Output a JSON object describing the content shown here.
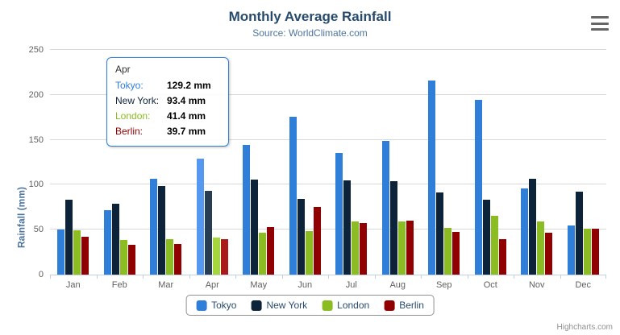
{
  "header": {
    "title": "Monthly Average Rainfall",
    "subtitle": "Source: WorldClimate.com"
  },
  "y_axis": {
    "title": "Rainfall (mm)"
  },
  "credits": {
    "label": "Highcharts.com"
  },
  "colors": {
    "title_text": "#274b6d",
    "subtitle_text": "#4d759e",
    "axis_label": "#606060",
    "axis_title": "#4d759e",
    "gridline": "#d8d8d8",
    "axis_line": "#c0d0e0",
    "legend_text": "#274b6d",
    "legend_border": "#909090",
    "tooltip_border": "#2f7ed8",
    "credits_text": "#909090"
  },
  "chart_data": {
    "type": "bar",
    "title": "Monthly Average Rainfall",
    "subtitle": "Source: WorldClimate.com",
    "xlabel": "",
    "ylabel": "Rainfall (mm)",
    "ylim": [
      0,
      250
    ],
    "yticks": [
      0,
      50,
      100,
      150,
      200,
      250
    ],
    "grid": true,
    "legend_position": "bottom",
    "highlighted_category": "Apr",
    "categories": [
      "Jan",
      "Feb",
      "Mar",
      "Apr",
      "May",
      "Jun",
      "Jul",
      "Aug",
      "Sep",
      "Oct",
      "Nov",
      "Dec"
    ],
    "series": [
      {
        "name": "Tokyo",
        "color": "#2f7ed8",
        "hover_color": "#5498f2",
        "values": [
          49.9,
          71.5,
          106.4,
          129.2,
          144.0,
          176.0,
          135.6,
          148.5,
          216.4,
          194.1,
          95.6,
          54.4
        ]
      },
      {
        "name": "New York",
        "color": "#0d233a",
        "hover_color": "#273d54",
        "values": [
          83.6,
          78.8,
          98.5,
          93.4,
          106.0,
          84.5,
          105.0,
          104.3,
          91.2,
          83.5,
          106.6,
          92.3
        ]
      },
      {
        "name": "London",
        "color": "#8bbc21",
        "hover_color": "#a5d63b",
        "values": [
          48.9,
          38.8,
          39.3,
          41.4,
          47.0,
          48.3,
          59.0,
          59.6,
          52.4,
          65.2,
          59.3,
          51.2
        ]
      },
      {
        "name": "Berlin",
        "color": "#910000",
        "hover_color": "#ab1a1a",
        "values": [
          42.4,
          33.2,
          34.5,
          39.7,
          52.6,
          75.5,
          57.4,
          60.4,
          47.6,
          39.1,
          46.8,
          51.1
        ]
      }
    ]
  },
  "tooltip": {
    "header": "Apr",
    "rows": [
      {
        "label": "Tokyo:",
        "value": "129.2 mm",
        "color": "#2f7ed8"
      },
      {
        "label": "New York:",
        "value": "93.4 mm",
        "color": "#0d233a"
      },
      {
        "label": "London:",
        "value": "41.4 mm",
        "color": "#8bbc21"
      },
      {
        "label": "Berlin:",
        "value": "39.7 mm",
        "color": "#910000"
      }
    ]
  },
  "legend": {
    "items": [
      {
        "label": "Tokyo",
        "color": "#2f7ed8"
      },
      {
        "label": "New York",
        "color": "#0d233a"
      },
      {
        "label": "London",
        "color": "#8bbc21"
      },
      {
        "label": "Berlin",
        "color": "#910000"
      }
    ]
  }
}
